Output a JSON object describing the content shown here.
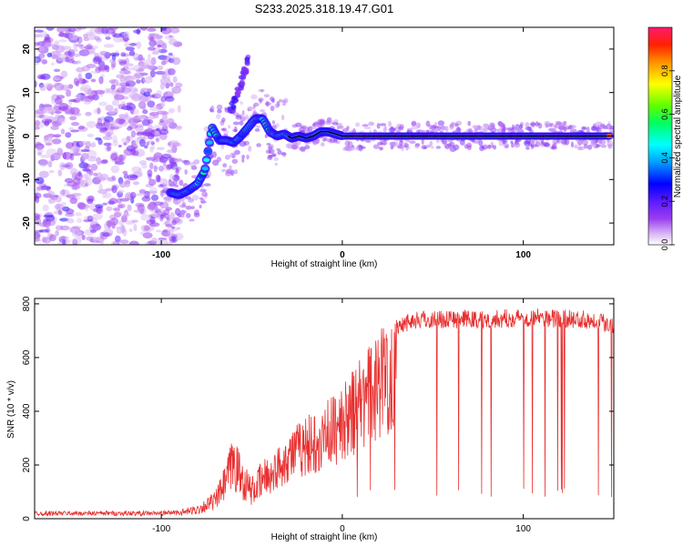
{
  "title": "S233.2025.318.19.47.G01",
  "colors": {
    "signal": "#e83030",
    "track": "#000000"
  },
  "chart_data": [
    {
      "type": "heatmap",
      "xlabel": "Height of straight line (km)",
      "ylabel": "Frequency (Hz)",
      "xlim": [
        -170,
        150
      ],
      "ylim": [
        -25,
        25
      ],
      "xticks": [
        -100,
        0,
        100
      ],
      "yticks": [
        -20,
        -10,
        0,
        10,
        20
      ],
      "colorbar": {
        "label": "Normalized spectral amplitude",
        "range": [
          0,
          1
        ],
        "ticks": [
          "0.0",
          "0.2",
          "0.4",
          "0.6",
          "0.8"
        ],
        "tick_values": [
          0,
          0.2,
          0.4,
          0.6,
          0.8
        ]
      },
      "ridge": {
        "x": [
          -95,
          -90,
          -85,
          -80,
          -76,
          -72,
          -68,
          -64,
          -60,
          -56,
          -52,
          -48,
          -44,
          -40,
          -36,
          -32,
          -28,
          -24,
          -20,
          -16,
          -12,
          -8,
          -4,
          0,
          150
        ],
        "y": [
          -13,
          -13.5,
          -12.5,
          -11,
          -8,
          2,
          -1,
          -1,
          -1.5,
          0,
          2,
          4,
          4,
          1,
          0,
          0.5,
          -0.5,
          0,
          -0.5,
          0,
          1,
          1,
          0.5,
          0,
          0
        ]
      }
    },
    {
      "type": "line",
      "xlabel": "Height of straight line (km)",
      "ylabel": "SNR (10 * v/v)",
      "xlim": [
        -170,
        150
      ],
      "ylim": [
        0,
        820
      ],
      "xticks": [
        -100,
        0,
        100
      ],
      "yticks": [
        0,
        200,
        400,
        600,
        800
      ],
      "series": [
        {
          "name": "SNR",
          "envelope_x": [
            -170,
            -100,
            -90,
            -80,
            -70,
            -65,
            -60,
            -56,
            -50,
            -40,
            -30,
            -20,
            -10,
            0,
            10,
            20,
            30,
            40,
            60,
            80,
            100,
            120,
            140,
            150
          ],
          "envelope_y": [
            20,
            20,
            25,
            40,
            80,
            150,
            250,
            180,
            120,
            200,
            300,
            350,
            400,
            450,
            550,
            650,
            720,
            740,
            745,
            740,
            750,
            745,
            740,
            720
          ]
        }
      ]
    }
  ]
}
